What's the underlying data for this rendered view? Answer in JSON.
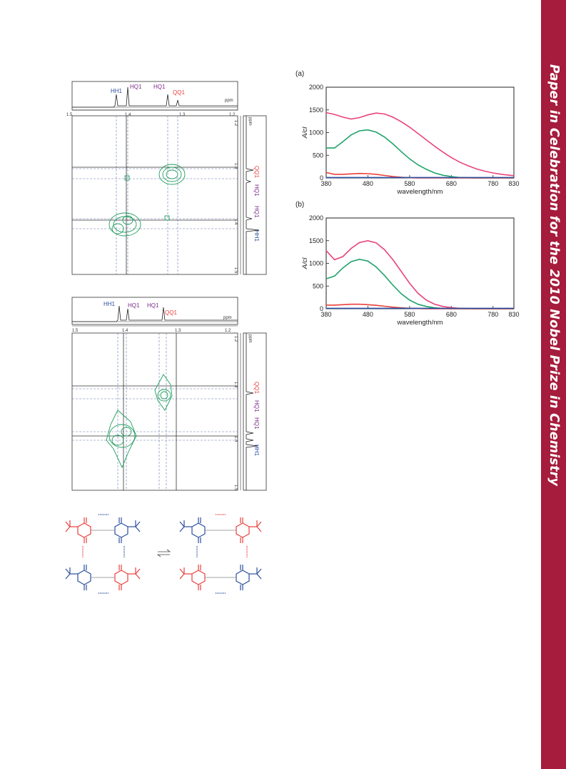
{
  "sidebar": {
    "text": "Paper in Celebration for the 2010 Nobel Prize in Chemistry"
  },
  "nmr_top": {
    "peaks": [
      "HH1",
      "HQ1",
      "HQ1",
      "QQ1"
    ],
    "axis_unit": "ppm",
    "x_ticks": [
      "1.5",
      "1.4",
      "1.3",
      "1.2"
    ],
    "y_ticks": [
      "1.2",
      "1.3",
      "1.4",
      "1.5"
    ],
    "y_peaks": [
      "QQ1",
      "HQ1",
      "HQ1",
      "HH1"
    ]
  },
  "nmr_bottom": {
    "peaks": [
      "HH1",
      "HQ1",
      "HQ1",
      "QQ1"
    ],
    "axis_unit": "ppm",
    "x_ticks": [
      "1.5",
      "1.4",
      "1.3",
      "1.2"
    ],
    "y_ticks": [
      "1.2",
      "1.3",
      "1.4",
      "1.5"
    ],
    "y_peaks": [
      "QQ1",
      "HQ1",
      "HQ1",
      "HH1"
    ]
  },
  "colors": {
    "red": "#e8403c",
    "green": "#1fa36a",
    "pink": "#e8457a",
    "blue": "#2b4fa0",
    "purple": "#7b2a8a",
    "contour": "#1f9e5e"
  },
  "chart_data": [
    {
      "type": "line",
      "panel_label": "(a)",
      "xlabel": "wavelength/nm",
      "ylabel": "A/cl",
      "xlim": [
        380,
        830
      ],
      "ylim": [
        0,
        2000
      ],
      "x_ticks": [
        "380",
        "480",
        "580",
        "680",
        "780",
        "830"
      ],
      "y_ticks": [
        "0",
        "500",
        "1000",
        "1500",
        "2000"
      ],
      "x": [
        380,
        400,
        420,
        440,
        460,
        480,
        500,
        520,
        540,
        560,
        580,
        600,
        620,
        640,
        660,
        680,
        700,
        720,
        740,
        760,
        780,
        800,
        830
      ],
      "series": [
        {
          "color": "#e8457a",
          "values": [
            1440,
            1400,
            1340,
            1300,
            1330,
            1390,
            1430,
            1410,
            1340,
            1240,
            1120,
            980,
            840,
            700,
            570,
            450,
            350,
            270,
            200,
            150,
            110,
            80,
            50
          ]
        },
        {
          "color": "#1fa36a",
          "values": [
            660,
            660,
            800,
            950,
            1040,
            1060,
            1010,
            900,
            750,
            580,
            420,
            290,
            190,
            110,
            60,
            30,
            10,
            5,
            0,
            0,
            0,
            0,
            0
          ]
        },
        {
          "color": "#e8403c",
          "values": [
            120,
            80,
            80,
            90,
            100,
            95,
            80,
            55,
            30,
            15,
            5,
            0,
            0,
            0,
            0,
            0,
            0,
            0,
            0,
            0,
            0,
            0,
            0
          ]
        },
        {
          "color": "#2b4fa0",
          "values": [
            10,
            10,
            10,
            10,
            10,
            10,
            10,
            10,
            10,
            10,
            10,
            10,
            10,
            10,
            10,
            10,
            10,
            10,
            10,
            10,
            10,
            10,
            10
          ]
        }
      ]
    },
    {
      "type": "line",
      "panel_label": "(b)",
      "xlabel": "wavelength/nm",
      "ylabel": "A/cl",
      "xlim": [
        380,
        830
      ],
      "ylim": [
        0,
        2000
      ],
      "x_ticks": [
        "380",
        "480",
        "580",
        "680",
        "780",
        "830"
      ],
      "y_ticks": [
        "0",
        "500",
        "1000",
        "1500",
        "2000"
      ],
      "x": [
        380,
        400,
        420,
        440,
        460,
        480,
        500,
        520,
        540,
        560,
        580,
        600,
        620,
        640,
        660,
        680,
        700,
        720,
        740,
        760,
        780,
        800,
        830
      ],
      "series": [
        {
          "color": "#e8457a",
          "values": [
            1280,
            1080,
            1150,
            1330,
            1460,
            1500,
            1450,
            1300,
            1080,
            820,
            560,
            340,
            190,
            100,
            50,
            25,
            10,
            5,
            0,
            0,
            0,
            0,
            0
          ]
        },
        {
          "color": "#1fa36a",
          "values": [
            660,
            720,
            900,
            1040,
            1090,
            1050,
            920,
            730,
            520,
            330,
            190,
            100,
            50,
            20,
            8,
            3,
            0,
            0,
            0,
            0,
            0,
            0,
            0
          ]
        },
        {
          "color": "#e8403c",
          "values": [
            80,
            80,
            90,
            100,
            100,
            90,
            75,
            55,
            35,
            20,
            10,
            5,
            0,
            0,
            0,
            0,
            0,
            0,
            0,
            0,
            0,
            0,
            0
          ]
        },
        {
          "color": "#2b4fa0",
          "values": [
            10,
            10,
            10,
            10,
            10,
            10,
            10,
            10,
            10,
            10,
            10,
            10,
            10,
            10,
            10,
            10,
            10,
            10,
            10,
            10,
            10,
            10,
            10
          ]
        }
      ]
    }
  ]
}
